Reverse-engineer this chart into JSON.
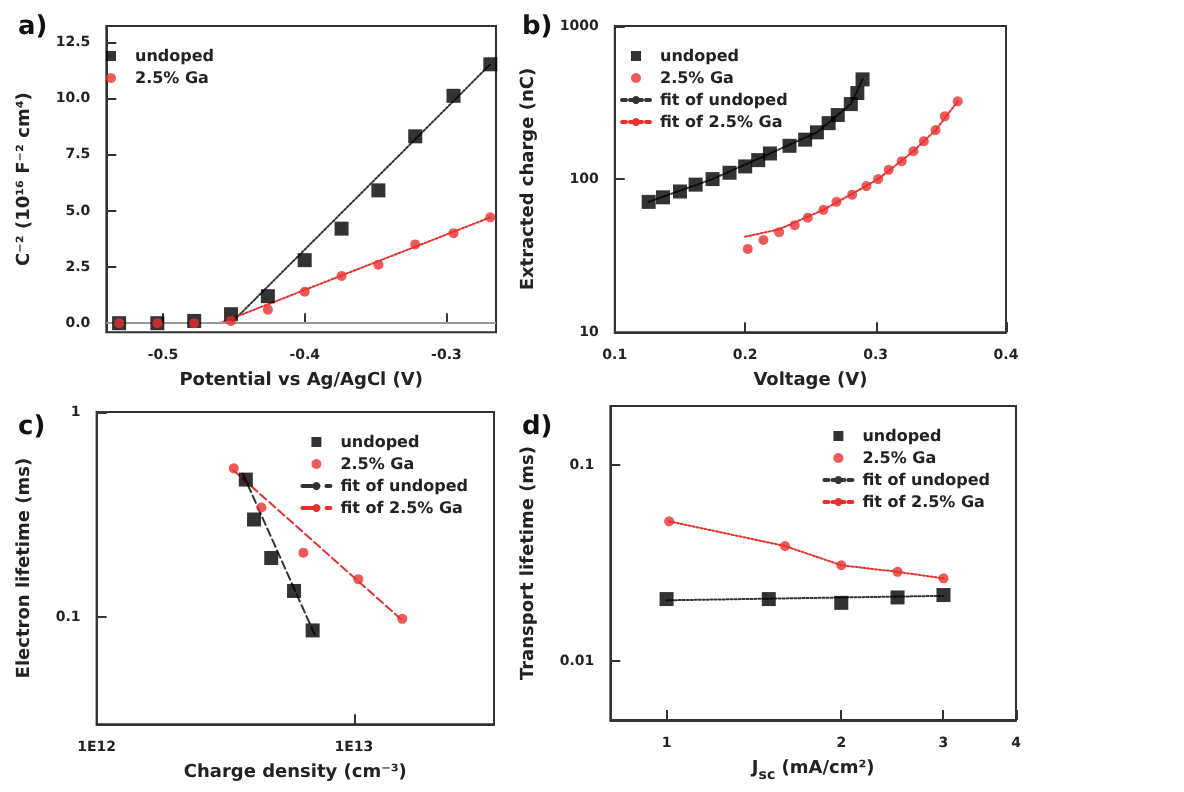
{
  "chart_data": [
    {
      "type": "scatter",
      "title": "a)",
      "xlabel": "Potential vs Ag/AgCl (V)",
      "ylabel": "C⁻² (10¹⁶ F⁻² cm⁴)",
      "xlim": [
        -0.54,
        -0.265
      ],
      "xticks": [
        -0.5,
        -0.4,
        -0.3
      ],
      "ylim": [
        -0.4,
        13.2
      ],
      "yticks": [
        {
          "value": 0,
          "label": "0.0"
        },
        2.5,
        {
          "value": 5,
          "label": "5.0"
        },
        7.5,
        {
          "value": 10,
          "label": "10.0"
        },
        12.5
      ],
      "legend": "top left",
      "ref_lines": [
        {
          "axis": "y",
          "value": 0,
          "color": "#999999"
        }
      ],
      "series": [
        {
          "name": "undoped",
          "type": "scatter",
          "marker": "square",
          "color": "#000000",
          "x": [
            -0.531,
            -0.504,
            -0.478,
            -0.452,
            -0.426,
            -0.4,
            -0.374,
            -0.348,
            -0.322,
            -0.295,
            -0.269
          ],
          "values": [
            0,
            0,
            0.1,
            0.4,
            1.2,
            2.8,
            4.2,
            5.9,
            8.3,
            10.1,
            11.5
          ]
        },
        {
          "name": "2.5% Ga",
          "type": "scatter",
          "marker": "circle",
          "color": "#e8312f",
          "x": [
            -0.531,
            -0.504,
            -0.478,
            -0.452,
            -0.426,
            -0.4,
            -0.374,
            -0.348,
            -0.322,
            -0.295,
            -0.269
          ],
          "values": [
            0,
            0,
            0,
            0.1,
            0.6,
            1.4,
            2.1,
            2.6,
            3.5,
            4.0,
            4.7
          ]
        },
        {
          "type": "line",
          "marker": "none",
          "line_style": "dotted",
          "color": "#333333",
          "x": [
            -0.452,
            -0.269
          ],
          "values": [
            0,
            11.5
          ]
        },
        {
          "type": "line",
          "marker": "none",
          "line_style": "dotted",
          "color": "#e8312f",
          "x": [
            -0.46,
            -0.269
          ],
          "values": [
            0,
            4.7
          ]
        }
      ]
    },
    {
      "type": "scatter",
      "title": "b)",
      "xlabel": "Voltage (V)",
      "ylabel": "Extracted charge (nC)",
      "log": "y",
      "xlim": [
        0.1,
        0.4
      ],
      "xticks": [
        0.1,
        0.2,
        0.3,
        0.4
      ],
      "ylim": [
        10,
        1000
      ],
      "yticks": [
        10,
        100,
        1000
      ],
      "legend": "top left",
      "series": [
        {
          "name": "undoped",
          "type": "scatter",
          "marker": "square",
          "color": "#000000",
          "x": [
            0.126,
            0.137,
            0.15,
            0.162,
            0.175,
            0.188,
            0.2,
            0.21,
            0.219,
            0.234,
            0.246,
            0.255,
            0.264,
            0.271,
            0.281,
            0.286,
            0.29
          ],
          "values": [
            71,
            76,
            83,
            92,
            100,
            110,
            121,
            133,
            147,
            165,
            181,
            202,
            232,
            262,
            309,
            365,
            448
          ]
        },
        {
          "name": "2.5% Ga",
          "type": "scatter",
          "marker": "circle",
          "color": "#e8312f",
          "x": [
            0.202,
            0.214,
            0.226,
            0.238,
            0.248,
            0.26,
            0.27,
            0.282,
            0.293,
            0.302,
            0.31,
            0.32,
            0.329,
            0.337,
            0.346,
            0.353,
            0.363
          ],
          "values": [
            35,
            40,
            45,
            50,
            56,
            63,
            71,
            79,
            90,
            100,
            115,
            131,
            152,
            177,
            209,
            257,
            322
          ]
        },
        {
          "name": "fit of undoped",
          "type": "line",
          "marker": "none",
          "line_style": "dotted",
          "color": "#333333",
          "x": [
            0.126,
            0.175,
            0.219,
            0.255,
            0.271,
            0.281,
            0.29
          ],
          "values": [
            71,
            100,
            147,
            202,
            262,
            309,
            448
          ]
        },
        {
          "name": "fit of 2.5% Ga",
          "type": "line",
          "marker": "none",
          "line_style": "dotted",
          "color": "#e8312f",
          "x": [
            0.2,
            0.226,
            0.26,
            0.302,
            0.329,
            0.346,
            0.363
          ],
          "values": [
            42,
            47,
            63,
            100,
            152,
            209,
            322
          ]
        }
      ]
    },
    {
      "type": "scatter",
      "title": "c)",
      "xlabel": "Charge density (cm⁻³)",
      "ylabel": "Electron lifetime (ms)",
      "log": "xy",
      "xlim": [
        1000000000000.0,
        35000000000000.0
      ],
      "xticks": [
        {
          "value": 1000000000000.0,
          "label": "1E12"
        },
        {
          "value": 10000000000000.0,
          "label": "1E13"
        }
      ],
      "ylim": [
        0.03,
        1
      ],
      "yticks": [
        0.1,
        1
      ],
      "legend": "top right",
      "series": [
        {
          "name": "undoped",
          "type": "scatter",
          "marker": "square",
          "color": "#000000",
          "x": [
            3800000000000.0,
            4090000000000.0,
            4770000000000.0,
            5850000000000.0,
            6910000000000.0
          ],
          "values": [
            0.468,
            0.299,
            0.194,
            0.134,
            0.086
          ]
        },
        {
          "name": "2.5% Ga",
          "type": "scatter",
          "marker": "circle",
          "color": "#e8312f",
          "x": [
            3410000000000.0,
            4370000000000.0,
            6360000000000.0,
            10400000000000.0,
            15400000000000.0
          ],
          "values": [
            0.531,
            0.342,
            0.206,
            0.153,
            0.098
          ]
        },
        {
          "name": "fit of undoped",
          "type": "line",
          "marker": "none",
          "line_style": "dashed",
          "color": "#333333",
          "x": [
            3700000000000.0,
            7100000000000.0
          ],
          "values": [
            0.5,
            0.08
          ]
        },
        {
          "name": "fit of 2.5% Ga",
          "type": "line",
          "marker": "none",
          "line_style": "dashed",
          "color": "#e8312f",
          "x": [
            3400000000000.0,
            15600000000000.0
          ],
          "values": [
            0.52,
            0.095
          ]
        }
      ]
    },
    {
      "type": "scatter",
      "title": "d)",
      "xlabel": "J$_{sc}$ (mA/cm²)",
      "ylabel": "Transport lifetime (ms)",
      "log": "xy",
      "xlim": [
        0.8,
        4
      ],
      "xticks": [
        1,
        2,
        3,
        4
      ],
      "ylim": [
        0.005,
        0.2
      ],
      "yticks": [
        0.01,
        0.1
      ],
      "legend": "top right",
      "series": [
        {
          "name": "undoped",
          "type": "scatter",
          "marker": "square",
          "color": "#000000",
          "x": [
            1,
            1.5,
            2,
            2.5,
            3
          ],
          "values": [
            0.0207,
            0.0207,
            0.0198,
            0.0211,
            0.0217
          ]
        },
        {
          "name": "2.5% Ga",
          "type": "scatter",
          "marker": "circle",
          "color": "#e8312f",
          "x": [
            1.01,
            1.6,
            2,
            2.5,
            3
          ],
          "values": [
            0.0516,
            0.0386,
            0.0308,
            0.0285,
            0.0264
          ]
        },
        {
          "name": "fit of undoped",
          "type": "line",
          "marker": "none",
          "line_style": "dotted",
          "color": "#333333",
          "x": [
            1,
            3
          ],
          "values": [
            0.0204,
            0.0215
          ]
        },
        {
          "name": "fit of 2.5% Ga",
          "type": "line",
          "marker": "none",
          "line_style": "dotted",
          "color": "#e8312f",
          "x": [
            1.01,
            1.6,
            2,
            2.5,
            3
          ],
          "values": [
            0.0516,
            0.0386,
            0.0308,
            0.0285,
            0.0264
          ]
        }
      ]
    }
  ]
}
